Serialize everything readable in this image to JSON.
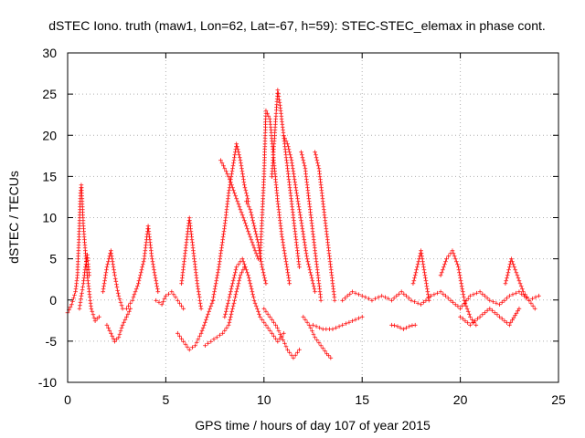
{
  "chart_data": {
    "type": "scatter",
    "title": "dSTEC Iono. truth (maw1, Lon=62, Lat=-67, h=59): STEC-STEC_elemax in phase cont.",
    "xlabel": "GPS time / hours of day 107 of year 2015",
    "ylabel": "dSTEC  / TECUs",
    "xlim": [
      0,
      25
    ],
    "ylim": [
      -10,
      30
    ],
    "xticks": [
      "0",
      "5",
      "10",
      "15",
      "20",
      "25"
    ],
    "yticks": [
      "-10",
      "-5",
      "0",
      "5",
      "10",
      "15",
      "20",
      "25",
      "30"
    ],
    "grid": true,
    "marker": "+",
    "marker_color": "#ff0000",
    "series": [
      {
        "x": [
          0.0,
          0.2,
          0.4,
          0.5,
          0.55,
          0.6,
          0.65,
          0.7,
          0.8,
          0.9,
          1.0,
          1.2,
          1.4,
          1.6
        ],
        "y": [
          -1.5,
          -0.5,
          1.0,
          3.0,
          6.0,
          9.0,
          13.0,
          14.0,
          9.0,
          6.0,
          3.0,
          -1.0,
          -2.5,
          -2.0
        ]
      },
      {
        "x": [
          0.6,
          0.7,
          0.8,
          0.9,
          1.0,
          1.1
        ],
        "y": [
          -1.0,
          0.5,
          2.0,
          4.0,
          5.5,
          3.0
        ]
      },
      {
        "x": [
          1.8,
          2.0,
          2.2,
          2.4,
          2.6,
          2.8
        ],
        "y": [
          1.0,
          4.0,
          6.0,
          3.0,
          0.5,
          -1.0
        ]
      },
      {
        "x": [
          2.0,
          2.2,
          2.4,
          2.6,
          2.8,
          3.0,
          3.2
        ],
        "y": [
          -3.0,
          -4.0,
          -5.0,
          -4.5,
          -3.0,
          -2.0,
          -1.0
        ]
      },
      {
        "x": [
          3.0,
          3.3,
          3.6,
          3.9,
          4.1,
          4.3,
          4.6
        ],
        "y": [
          -1.0,
          0.0,
          2.0,
          5.0,
          9.0,
          5.0,
          1.0
        ]
      },
      {
        "x": [
          4.5,
          4.8,
          5.0,
          5.3,
          5.6,
          5.9
        ],
        "y": [
          0.0,
          -0.5,
          0.5,
          1.0,
          0.0,
          -1.0
        ]
      },
      {
        "x": [
          5.8,
          6.0,
          6.2,
          6.4,
          6.6,
          6.8
        ],
        "y": [
          2.0,
          6.0,
          10.0,
          6.0,
          2.0,
          -1.0
        ]
      },
      {
        "x": [
          5.6,
          5.9,
          6.2,
          6.5,
          6.8,
          7.1,
          7.4
        ],
        "y": [
          -4.0,
          -5.0,
          -6.0,
          -5.5,
          -4.0,
          -2.0,
          0.0
        ]
      },
      {
        "x": [
          7.0,
          7.3,
          7.6,
          7.9,
          8.2,
          8.4,
          8.6,
          8.8,
          9.0
        ],
        "y": [
          -5.5,
          -5.0,
          -4.5,
          -4.0,
          -3.0,
          -1.0,
          1.0,
          3.0,
          4.0
        ]
      },
      {
        "x": [
          7.4,
          7.7,
          8.0,
          8.2,
          8.4,
          8.6,
          8.8,
          9.0,
          9.2
        ],
        "y": [
          0.0,
          4.0,
          9.0,
          13.0,
          16.0,
          19.0,
          17.0,
          14.0,
          12.0
        ]
      },
      {
        "x": [
          7.8,
          8.0,
          8.2,
          8.5,
          8.8,
          9.1,
          9.4,
          9.7
        ],
        "y": [
          17.0,
          16.0,
          15.0,
          13.0,
          11.0,
          9.0,
          7.0,
          5.0
        ]
      },
      {
        "x": [
          8.0,
          8.3,
          8.6,
          8.9,
          9.2,
          9.5,
          9.8,
          10.1,
          10.4,
          10.7,
          11.0
        ],
        "y": [
          -2.0,
          1.0,
          4.0,
          5.0,
          3.0,
          0.0,
          -2.0,
          -3.0,
          -4.0,
          -5.0,
          -4.0
        ]
      },
      {
        "x": [
          9.1,
          9.3,
          9.5,
          9.7,
          9.9,
          10.1
        ],
        "y": [
          12.0,
          11.0,
          9.0,
          7.0,
          4.0,
          2.0
        ]
      },
      {
        "x": [
          9.8,
          10.0,
          10.1,
          10.3,
          10.5,
          10.7,
          10.9,
          11.1,
          11.3
        ],
        "y": [
          5.0,
          15.0,
          23.0,
          22.0,
          17.0,
          12.0,
          8.0,
          5.0,
          2.0
        ]
      },
      {
        "x": [
          10.4,
          10.6,
          10.7,
          10.8,
          11.0,
          11.2,
          11.4,
          11.6,
          11.8
        ],
        "y": [
          15.0,
          22.0,
          25.5,
          24.0,
          20.0,
          16.0,
          12.0,
          8.0,
          4.0
        ]
      },
      {
        "x": [
          11.0,
          11.2,
          11.4,
          11.6,
          11.8,
          12.0,
          12.2,
          12.4,
          12.6
        ],
        "y": [
          20.0,
          19.0,
          17.0,
          14.0,
          11.0,
          8.0,
          5.0,
          3.0,
          1.0
        ]
      },
      {
        "x": [
          11.9,
          12.1,
          12.3,
          12.5,
          12.7,
          12.9
        ],
        "y": [
          18.0,
          16.0,
          12.0,
          8.0,
          4.0,
          0.0
        ]
      },
      {
        "x": [
          12.6,
          12.8,
          13.0,
          13.2,
          13.4,
          13.6
        ],
        "y": [
          18.0,
          16.0,
          12.0,
          8.0,
          4.0,
          0.0
        ]
      },
      {
        "x": [
          10.0,
          10.3,
          10.6,
          10.9,
          11.2,
          11.5,
          11.8
        ],
        "y": [
          -1.0,
          -2.0,
          -3.0,
          -4.5,
          -6.0,
          -7.0,
          -6.0
        ]
      },
      {
        "x": [
          12.0,
          12.3,
          12.6,
          12.9,
          13.2,
          13.4
        ],
        "y": [
          -2.0,
          -3.0,
          -4.5,
          -5.5,
          -6.5,
          -7.0
        ]
      },
      {
        "x": [
          12.5,
          13.0,
          13.5,
          14.0,
          14.5,
          15.0
        ],
        "y": [
          -3.0,
          -3.5,
          -3.5,
          -3.0,
          -2.5,
          -2.0
        ]
      },
      {
        "x": [
          14.0,
          14.5,
          15.0,
          15.5,
          16.0,
          16.5,
          17.0,
          17.5,
          18.0,
          18.5,
          19.0,
          19.5,
          20.0,
          20.5,
          21.0,
          21.5,
          22.0,
          22.5,
          23.0,
          23.5,
          24.0
        ],
        "y": [
          0.0,
          1.0,
          0.5,
          0.0,
          0.5,
          0.0,
          1.0,
          0.0,
          -0.5,
          0.5,
          1.0,
          0.0,
          -1.0,
          0.5,
          1.0,
          0.0,
          -0.5,
          0.5,
          1.0,
          0.0,
          0.5
        ]
      },
      {
        "x": [
          16.5,
          16.8,
          17.1,
          17.4,
          17.7
        ],
        "y": [
          -3.0,
          -3.2,
          -3.5,
          -3.2,
          -3.0
        ]
      },
      {
        "x": [
          17.6,
          17.8,
          18.0,
          18.2,
          18.4
        ],
        "y": [
          2.0,
          4.0,
          6.0,
          3.0,
          0.0
        ]
      },
      {
        "x": [
          19.0,
          19.3,
          19.6,
          19.9,
          20.2,
          20.5,
          20.8
        ],
        "y": [
          3.0,
          5.0,
          6.0,
          4.0,
          0.0,
          -2.0,
          -3.0
        ]
      },
      {
        "x": [
          20.0,
          20.5,
          21.0,
          21.5,
          22.0,
          22.5,
          23.0
        ],
        "y": [
          -2.0,
          -3.0,
          -2.0,
          -1.0,
          -2.0,
          -3.0,
          -1.0
        ]
      },
      {
        "x": [
          22.3,
          22.6,
          22.9,
          23.2,
          23.5,
          23.8
        ],
        "y": [
          2.0,
          5.0,
          3.0,
          1.0,
          0.0,
          -1.0
        ]
      }
    ]
  }
}
